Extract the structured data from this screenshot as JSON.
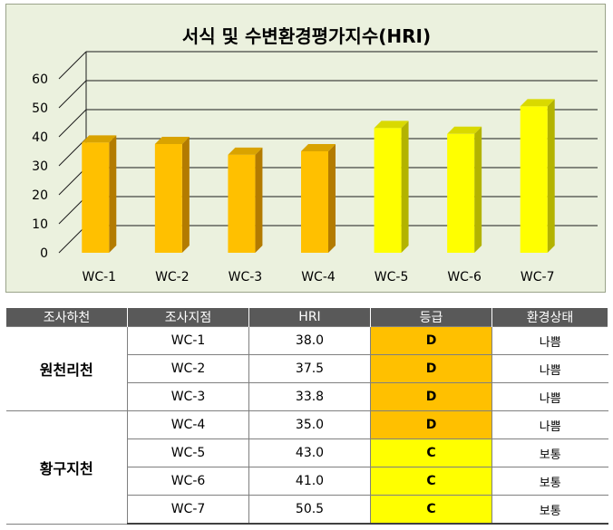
{
  "chart_data": {
    "type": "bar",
    "title": "서식 및 수변환경평가지수(HRI)",
    "categories": [
      "WC-1",
      "WC-2",
      "WC-3",
      "WC-4",
      "WC-5",
      "WC-6",
      "WC-7"
    ],
    "values": [
      38.0,
      37.5,
      33.8,
      35.0,
      43.0,
      41.0,
      50.5
    ],
    "ylim": [
      0,
      60
    ],
    "yticks": [
      0,
      10,
      20,
      30,
      40,
      50,
      60
    ],
    "grid": true,
    "colors": {
      "D": {
        "front": "#ffc000",
        "side": "#b37b00",
        "top": "#d9a300"
      },
      "C": {
        "front": "#ffff00",
        "side": "#b3b300",
        "top": "#d9d900"
      }
    },
    "bar_grades": [
      "D",
      "D",
      "D",
      "D",
      "C",
      "C",
      "C"
    ]
  },
  "table": {
    "headers": [
      "조사하천",
      "조사지점",
      "HRI",
      "등급",
      "환경상태"
    ],
    "groups": [
      {
        "stream": "원천리천",
        "rows": [
          {
            "site": "WC-1",
            "hri": "38.0",
            "grade": "D",
            "status": "나쁨"
          },
          {
            "site": "WC-2",
            "hri": "37.5",
            "grade": "D",
            "status": "나쁨"
          },
          {
            "site": "WC-3",
            "hri": "33.8",
            "grade": "D",
            "status": "나쁨"
          }
        ]
      },
      {
        "stream": "황구지천",
        "rows": [
          {
            "site": "WC-4",
            "hri": "35.0",
            "grade": "D",
            "status": "나쁨"
          },
          {
            "site": "WC-5",
            "hri": "43.0",
            "grade": "C",
            "status": "보통"
          },
          {
            "site": "WC-6",
            "hri": "41.0",
            "grade": "C",
            "status": "보통"
          },
          {
            "site": "WC-7",
            "hri": "50.5",
            "grade": "C",
            "status": "보통"
          }
        ]
      }
    ],
    "grade_colors": {
      "D": "#ffc000",
      "C": "#ffff00"
    }
  }
}
